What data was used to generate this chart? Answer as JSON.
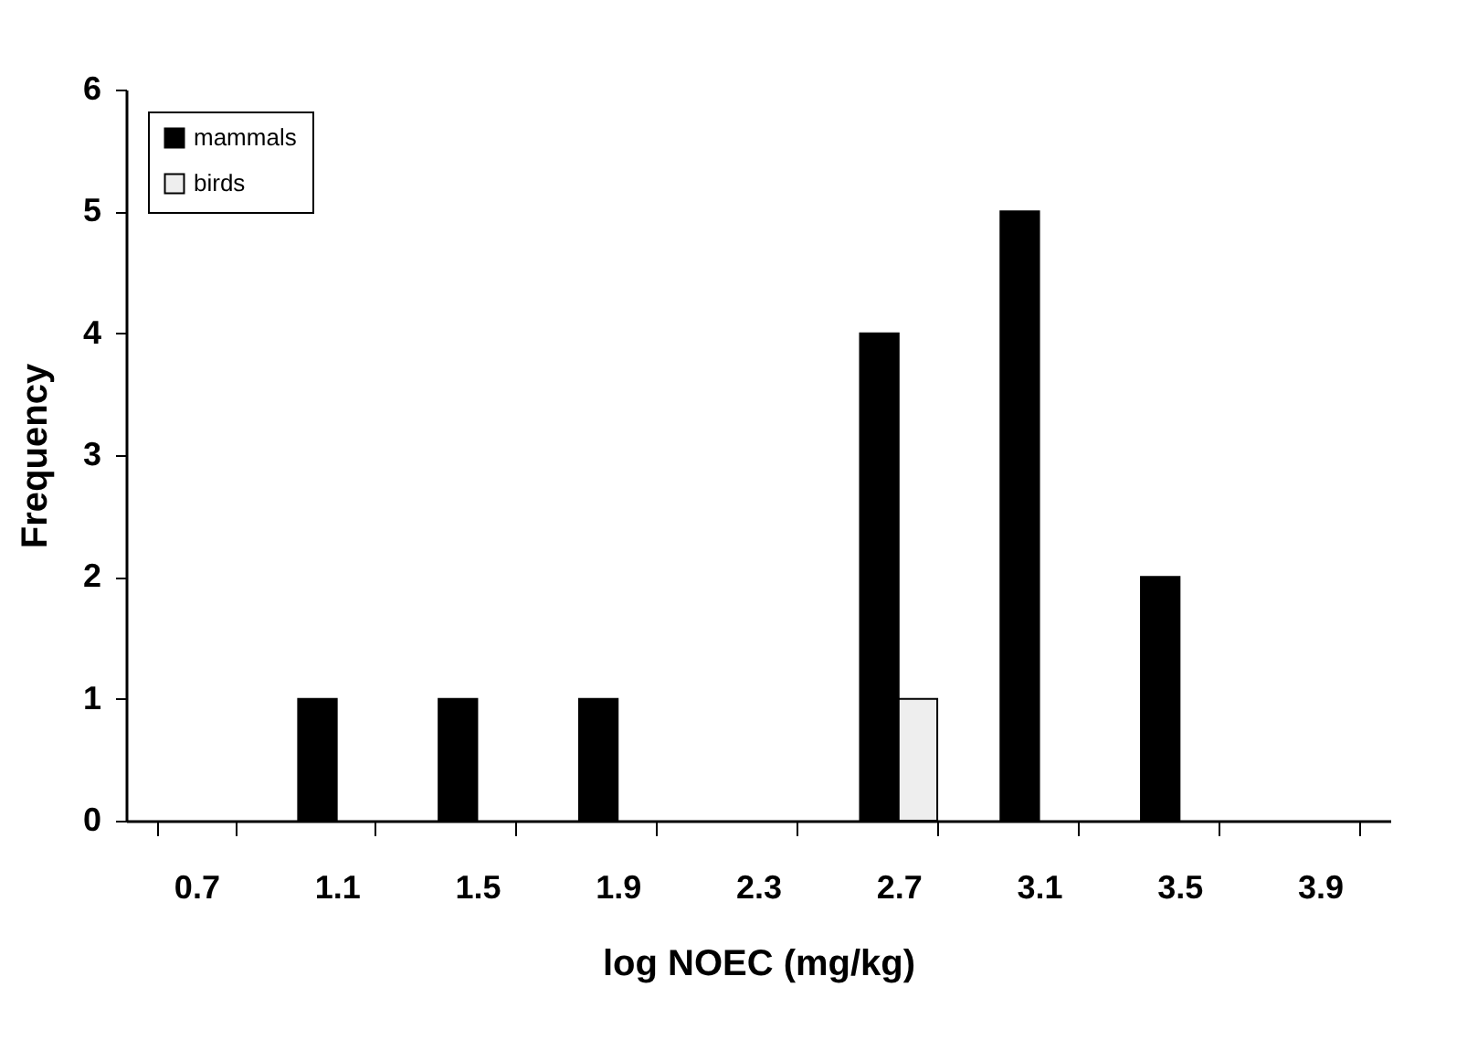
{
  "chart_data": {
    "type": "bar",
    "xlabel": "log NOEC (mg/kg)",
    "ylabel": "Frequency",
    "categories": [
      "0.7",
      "1.1",
      "1.5",
      "1.9",
      "2.3",
      "2.7",
      "3.1",
      "3.5",
      "3.9"
    ],
    "series": [
      {
        "name": "mammals",
        "color": "#000000",
        "values": [
          0,
          1,
          1,
          1,
          0,
          4,
          5,
          2,
          0
        ]
      },
      {
        "name": "birds",
        "color": "#eeeeee",
        "values": [
          0,
          0,
          0,
          0,
          0,
          1,
          0,
          0,
          0
        ]
      }
    ],
    "ylim": [
      0,
      6
    ],
    "yticks": [
      0,
      1,
      2,
      3,
      4,
      5,
      6
    ],
    "grid": false,
    "legend": "top left"
  }
}
